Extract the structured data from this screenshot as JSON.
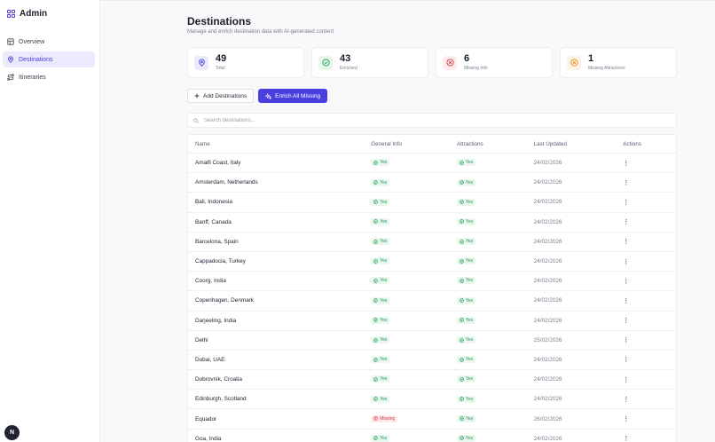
{
  "app": {
    "title": "Admin"
  },
  "sidebar": {
    "items": [
      {
        "label": "Overview",
        "icon": "layout-icon",
        "active": false
      },
      {
        "label": "Destinations",
        "icon": "map-pin-icon",
        "active": true
      },
      {
        "label": "Itineraries",
        "icon": "route-icon",
        "active": false
      }
    ]
  },
  "header": {
    "title": "Destinations",
    "subtitle": "Manage and enrich destination data with AI-generated content"
  },
  "stats": [
    {
      "value": "49",
      "label": "Total",
      "icon": "map-pin-icon",
      "color": "#4a40e0",
      "bg": "#ebe9fc"
    },
    {
      "value": "43",
      "label": "Enriched",
      "icon": "check-circle-icon",
      "color": "#1e9a52",
      "bg": "#e6f6ec"
    },
    {
      "value": "6",
      "label": "Missing Info",
      "icon": "x-circle-icon",
      "color": "#d8373e",
      "bg": "#fdecec"
    },
    {
      "value": "1",
      "label": "Missing Attractions",
      "icon": "x-circle-icon",
      "color": "#e08a14",
      "bg": "#fdf2e3"
    }
  ],
  "toolbar": {
    "add_label": "Add Destinations",
    "enrich_label": "Enrich All Missing"
  },
  "search": {
    "placeholder": "Search destinations..."
  },
  "table": {
    "columns": {
      "name": "Name",
      "info": "General Info",
      "attractions": "Attractions",
      "updated": "Last Updated",
      "actions": "Actions"
    },
    "rows": [
      {
        "name": "Amalfi Coast, Italy",
        "info": "Yes",
        "attractions": "Yes",
        "updated": "24/02/2026"
      },
      {
        "name": "Amsterdam, Netherlands",
        "info": "Yes",
        "attractions": "Yes",
        "updated": "24/02/2026"
      },
      {
        "name": "Bali, Indonesia",
        "info": "Yes",
        "attractions": "Yes",
        "updated": "24/02/2026"
      },
      {
        "name": "Banff, Canada",
        "info": "Yes",
        "attractions": "Yes",
        "updated": "24/02/2026"
      },
      {
        "name": "Barcelona, Spain",
        "info": "Yes",
        "attractions": "Yes",
        "updated": "24/02/2026"
      },
      {
        "name": "Cappadocia, Turkey",
        "info": "Yes",
        "attractions": "Yes",
        "updated": "24/02/2026"
      },
      {
        "name": "Coorg, India",
        "info": "Yes",
        "attractions": "Yes",
        "updated": "24/02/2026"
      },
      {
        "name": "Copenhagen, Denmark",
        "info": "Yes",
        "attractions": "Yes",
        "updated": "24/02/2026"
      },
      {
        "name": "Darjeeling, India",
        "info": "Yes",
        "attractions": "Yes",
        "updated": "24/02/2026"
      },
      {
        "name": "Delhi",
        "info": "Yes",
        "attractions": "Yes",
        "updated": "25/02/2026"
      },
      {
        "name": "Dubai, UAE",
        "info": "Yes",
        "attractions": "Yes",
        "updated": "24/02/2026"
      },
      {
        "name": "Dubrovnik, Croatia",
        "info": "Yes",
        "attractions": "Yes",
        "updated": "24/02/2026"
      },
      {
        "name": "Edinburgh, Scotland",
        "info": "Yes",
        "attractions": "Yes",
        "updated": "24/02/2026"
      },
      {
        "name": "Equador",
        "info": "Missing",
        "attractions": "Yes",
        "updated": "26/02/2026"
      },
      {
        "name": "Goa, India",
        "info": "Yes",
        "attractions": "Yes",
        "updated": "24/02/2026"
      }
    ]
  },
  "user": {
    "initial": "N"
  }
}
